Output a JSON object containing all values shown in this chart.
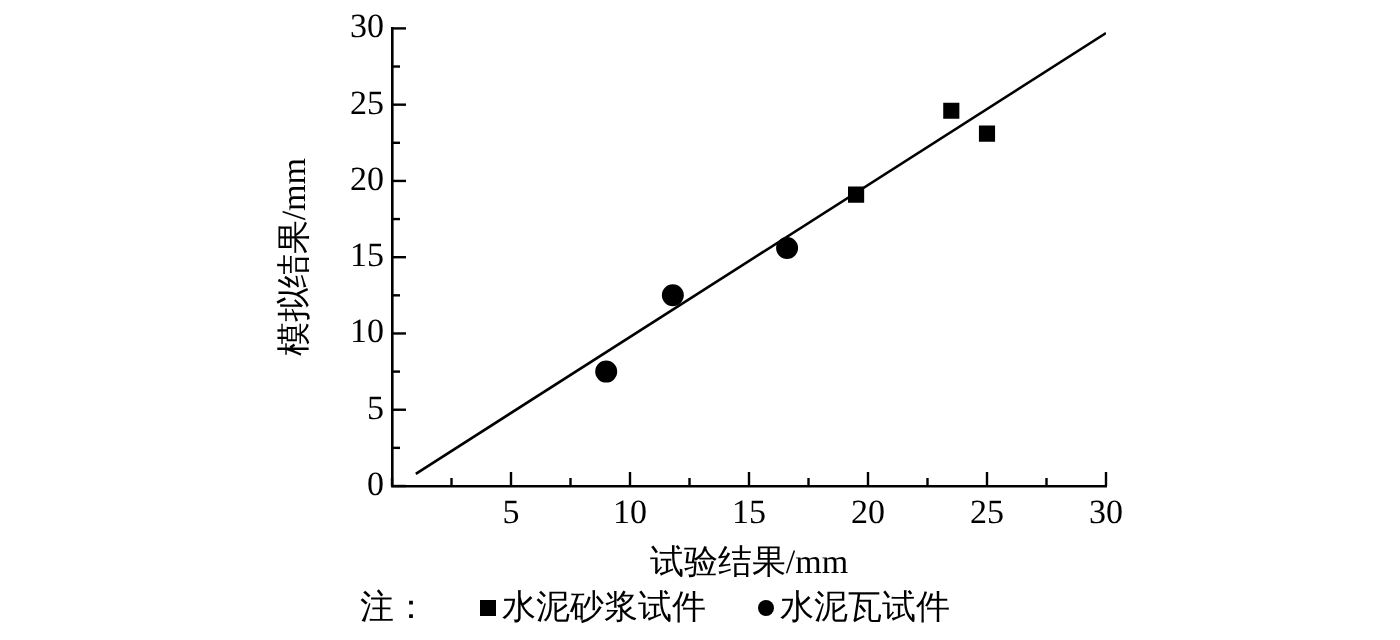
{
  "chart_data": {
    "type": "scatter",
    "xlabel": "试验结果/mm",
    "ylabel": "模拟结果/mm",
    "legend_title": "注：",
    "legend": "bottom",
    "grid": false,
    "xlim": [
      0,
      30
    ],
    "ylim": [
      0,
      30
    ],
    "xticks": [
      {
        "value": 0,
        "label": null
      },
      {
        "value": 2.5,
        "label": null
      },
      5,
      {
        "value": 7.5,
        "label": null
      },
      10,
      {
        "value": 12.5,
        "label": null
      },
      15,
      {
        "value": 17.5,
        "label": null
      },
      20,
      {
        "value": 22.5,
        "label": null
      },
      25,
      {
        "value": 27.5,
        "label": null
      },
      30
    ],
    "yticks": [
      0,
      {
        "value": 2.5,
        "label": null
      },
      5,
      {
        "value": 7.5,
        "label": null
      },
      10,
      {
        "value": 12.5,
        "label": null
      },
      15,
      {
        "value": 17.5,
        "label": null
      },
      20,
      {
        "value": 22.5,
        "label": null
      },
      25,
      {
        "value": 27.5,
        "label": null
      },
      30
    ],
    "series": [
      {
        "name": "水泥砂浆试件",
        "color": "#000000",
        "marker": "square",
        "x": [
          19.5,
          23.5,
          25
        ],
        "values": [
          19.1,
          24.6,
          23.1
        ]
      },
      {
        "name": "水泥瓦试件",
        "color": "#000000",
        "marker": "circle",
        "x": [
          9,
          11.8,
          16.6
        ],
        "values": [
          7.5,
          12.5,
          15.6
        ]
      },
      {
        "type": "line",
        "color": "#000000",
        "marker": "none",
        "x": [
          1,
          30
        ],
        "values": [
          0.8,
          29.7
        ]
      }
    ]
  }
}
